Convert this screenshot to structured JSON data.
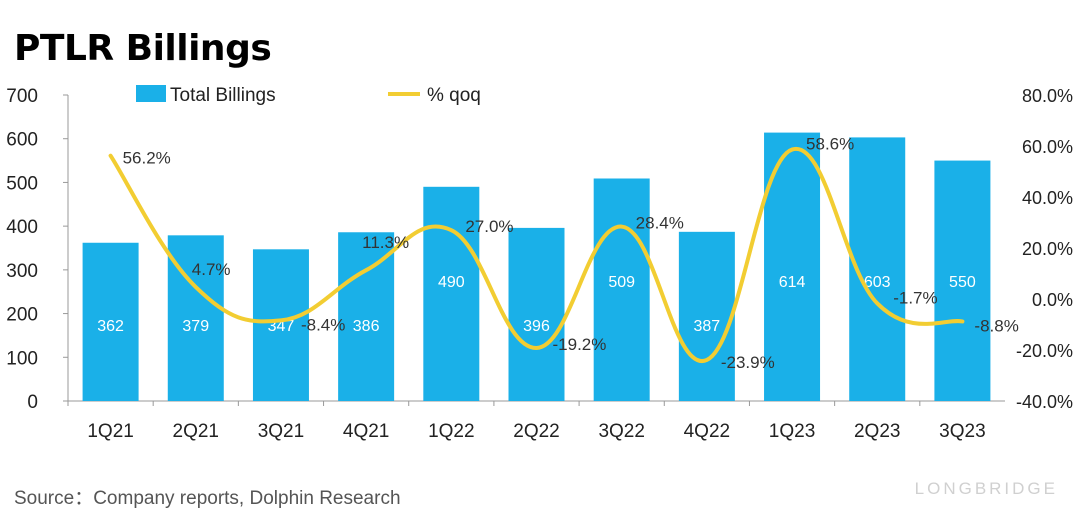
{
  "title": "PTLR Billings",
  "source": "Source：Company reports, Dolphin Research",
  "watermark": "LONGBRIDGE",
  "chart_data": {
    "type": "bar",
    "categories": [
      "1Q21",
      "2Q21",
      "3Q21",
      "4Q21",
      "1Q22",
      "2Q22",
      "3Q22",
      "4Q22",
      "1Q23",
      "2Q23",
      "3Q23"
    ],
    "series": [
      {
        "name": "Total Billings",
        "type": "bar",
        "axis": "left",
        "color": "#1ab0e8",
        "values": [
          362,
          379,
          347,
          386,
          490,
          396,
          509,
          387,
          614,
          603,
          550
        ]
      },
      {
        "name": "% qoq",
        "type": "line",
        "axis": "right",
        "color": "#f2cd32",
        "values": [
          56.2,
          4.7,
          -8.4,
          11.3,
          27.0,
          -19.2,
          28.4,
          -23.9,
          58.6,
          -1.7,
          -8.8
        ],
        "labels": [
          "56.2%",
          "4.7%",
          "-8.4%",
          "11.3%",
          "27.0%",
          "-19.2%",
          "28.4%",
          "-23.9%",
          "58.6%",
          "-1.7%",
          "-8.8%"
        ]
      }
    ],
    "y_left": {
      "min": 0,
      "max": 700,
      "ticks": [
        "0",
        "100",
        "200",
        "300",
        "400",
        "500",
        "600",
        "700"
      ]
    },
    "y_right": {
      "min": -40,
      "max": 80,
      "ticks": [
        "-40.0%",
        "-20.0%",
        "0.0%",
        "20.0%",
        "40.0%",
        "60.0%",
        "80.0%"
      ]
    },
    "legend": "top",
    "grid": false
  }
}
